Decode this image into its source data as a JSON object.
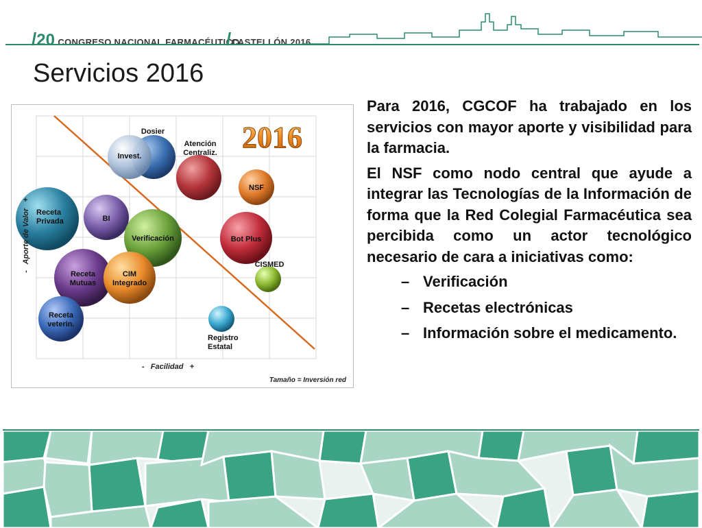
{
  "header": {
    "slash1": "/",
    "num": "20",
    "congress": "CONGRESO NACIONAL FARMACÉUTICO",
    "slash2": "/",
    "place": "CASTELLÓN 2016"
  },
  "title": "Servicios 2016",
  "chart": {
    "year_badge": "2016",
    "x_axis_label": "-   Facilidad   +",
    "y_axis_label": "-   Aporte de Valor   +",
    "size_note": "Tamaño = Inversión red",
    "bubbles": [
      {
        "label": "Dosier",
        "color": "#3a6fb0"
      },
      {
        "label": "Invest.",
        "color": "#aabfd8"
      },
      {
        "label": "Atención Centraliz.",
        "color": "#b3343a"
      },
      {
        "label": "NSF",
        "color": "#e07a2a"
      },
      {
        "label": "Receta Privada",
        "color": "#2a7fa0"
      },
      {
        "label": "BI",
        "color": "#7a5eaa"
      },
      {
        "label": "Verificación",
        "color": "#6aa03a"
      },
      {
        "label": "Bot Plus",
        "color": "#c02c3a"
      },
      {
        "label": "CISMED",
        "color": "#8ab830"
      },
      {
        "label": "Receta Mutuas",
        "color": "#6a3a8a"
      },
      {
        "label": "CIM Integrado",
        "color": "#e88a2a"
      },
      {
        "label": "Receta veterin.",
        "color": "#3a6ab8"
      },
      {
        "label": "Registro Estatal",
        "color": "#3aa8d0"
      }
    ]
  },
  "paragraphs": [
    "Para 2016, CGCOF ha trabajado en los servicios con mayor aporte y visibilidad para la farmacia.",
    "El NSF como nodo central que ayude a integrar las Tecnologías de la Información de forma que la Red Colegial Farmacéutica sea percibida como un actor tecnológico necesario de cara a iniciativas como:"
  ],
  "bullets": [
    {
      "dash": "–",
      "text": "Verificación"
    },
    {
      "dash": "–",
      "text": "Recetas electrónicas"
    },
    {
      "dash": "–",
      "text": "Información sobre el medicamento."
    }
  ],
  "colors": {
    "accent": "#2c8a6a",
    "mosaic_dark": "#2e9a7a",
    "mosaic_light": "#9fd0be"
  }
}
